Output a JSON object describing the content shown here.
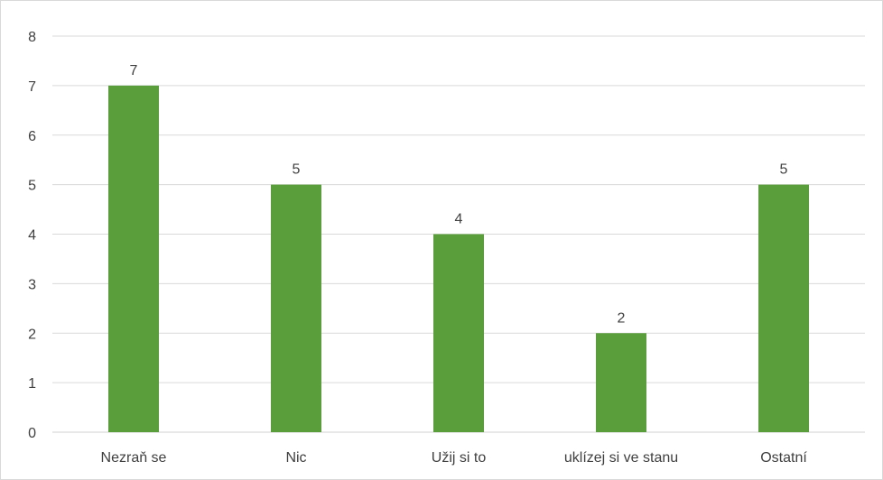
{
  "chart_data": {
    "type": "bar",
    "categories": [
      "Nezraň se",
      "Nic",
      "Užij si to",
      "uklízej si ve stanu",
      "Ostatní"
    ],
    "values": [
      7,
      5,
      4,
      2,
      5
    ],
    "data_labels": [
      "7",
      "5",
      "4",
      "2",
      "5"
    ],
    "y_ticks": [
      "0",
      "1",
      "2",
      "3",
      "4",
      "5",
      "6",
      "7",
      "8"
    ],
    "ylim": [
      0,
      8
    ],
    "title": "",
    "xlabel": "",
    "ylabel": "",
    "grid": true,
    "bar_color": "#5a9e3c",
    "grid_color": "#d9d9d9"
  }
}
